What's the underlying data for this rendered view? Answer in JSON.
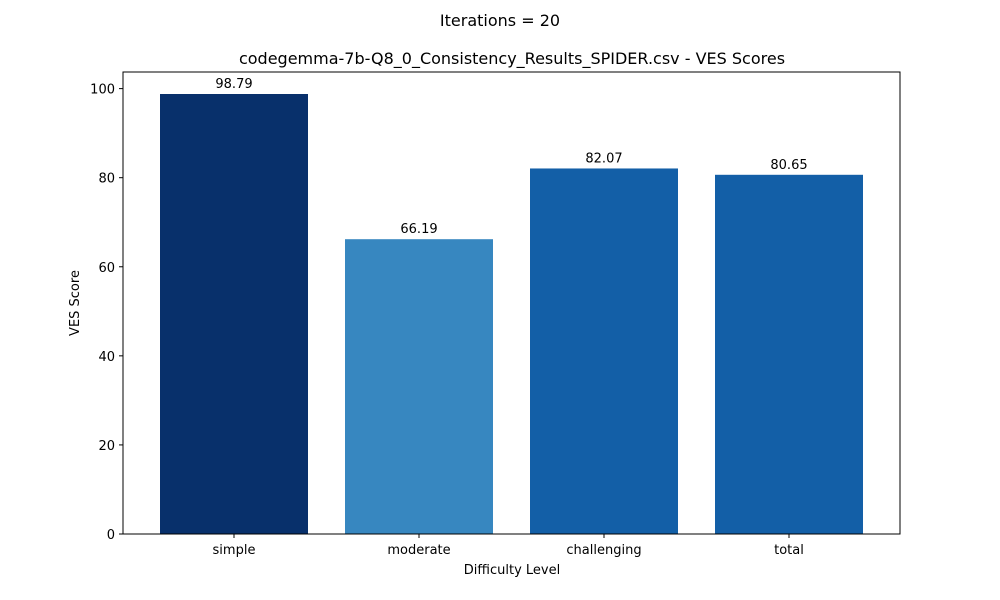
{
  "chart_data": {
    "type": "bar",
    "suptitle": "Iterations = 20",
    "title": "codegemma-7b-Q8_0_Consistency_Results_SPIDER.csv - VES Scores",
    "xlabel": "Difficulty Level",
    "ylabel": "VES Score",
    "categories": [
      "simple",
      "moderate",
      "challenging",
      "total"
    ],
    "values": [
      98.79,
      66.19,
      82.07,
      80.65
    ],
    "value_labels": [
      "98.79",
      "66.19",
      "82.07",
      "80.65"
    ],
    "colors": [
      "#08306b",
      "#3787c0",
      "#135fa7",
      "#135fa7"
    ],
    "ylim": [
      0,
      103.73
    ],
    "yticks": [
      0,
      20,
      40,
      60,
      80,
      100
    ],
    "ytick_labels": [
      "0",
      "20",
      "40",
      "60",
      "80",
      "100"
    ],
    "grid": false,
    "legend": "none"
  }
}
